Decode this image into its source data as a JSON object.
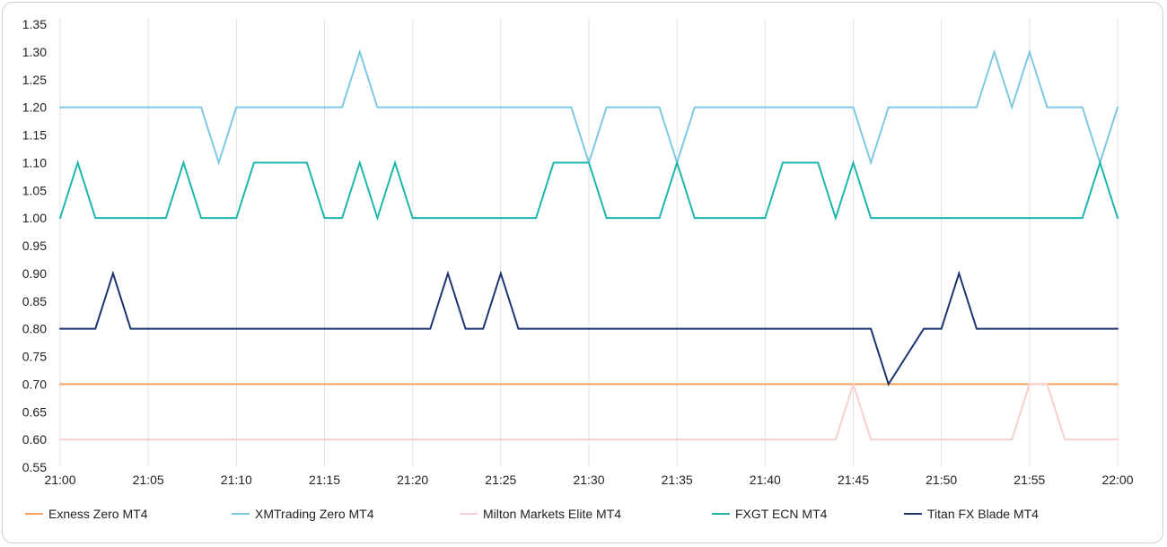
{
  "chart_data": {
    "type": "line",
    "x": [
      "21:00",
      "21:01",
      "21:02",
      "21:03",
      "21:04",
      "21:05",
      "21:06",
      "21:07",
      "21:08",
      "21:09",
      "21:10",
      "21:11",
      "21:12",
      "21:13",
      "21:14",
      "21:15",
      "21:16",
      "21:17",
      "21:18",
      "21:19",
      "21:20",
      "21:21",
      "21:22",
      "21:23",
      "21:24",
      "21:25",
      "21:26",
      "21:27",
      "21:28",
      "21:29",
      "21:30",
      "21:31",
      "21:32",
      "21:33",
      "21:34",
      "21:35",
      "21:36",
      "21:37",
      "21:38",
      "21:39",
      "21:40",
      "21:41",
      "21:42",
      "21:43",
      "21:44",
      "21:45",
      "21:46",
      "21:47",
      "21:48",
      "21:49",
      "21:50",
      "21:51",
      "21:52",
      "21:53",
      "21:54",
      "21:55",
      "21:56",
      "21:57",
      "21:58",
      "21:59",
      "22:00"
    ],
    "x_tick_labels": [
      "21:00",
      "21:05",
      "21:10",
      "21:15",
      "21:20",
      "21:25",
      "21:30",
      "21:35",
      "21:40",
      "21:45",
      "21:50",
      "21:55",
      "22:00"
    ],
    "y_tick_labels": [
      "1.35",
      "1.30",
      "1.25",
      "1.20",
      "1.15",
      "1.10",
      "1.05",
      "1.00",
      "0.95",
      "0.90",
      "0.85",
      "0.80",
      "0.75",
      "0.70",
      "0.65",
      "0.60",
      "0.55"
    ],
    "ylim": [
      0.55,
      1.35
    ],
    "grid": "vertical",
    "legend": "bottom",
    "series": [
      {
        "name": "Exness Zero MT4",
        "color": "#f5a35c",
        "values": [
          0.7,
          0.7,
          0.7,
          0.7,
          0.7,
          0.7,
          0.7,
          0.7,
          0.7,
          0.7,
          0.7,
          0.7,
          0.7,
          0.7,
          0.7,
          0.7,
          0.7,
          0.7,
          0.7,
          0.7,
          0.7,
          0.7,
          0.7,
          0.7,
          0.7,
          0.7,
          0.7,
          0.7,
          0.7,
          0.7,
          0.7,
          0.7,
          0.7,
          0.7,
          0.7,
          0.7,
          0.7,
          0.7,
          0.7,
          0.7,
          0.7,
          0.7,
          0.7,
          0.7,
          0.7,
          0.7,
          0.7,
          0.7,
          0.7,
          0.7,
          0.7,
          0.7,
          0.7,
          0.7,
          0.7,
          0.7,
          0.7,
          0.7,
          0.7,
          0.7,
          0.7
        ]
      },
      {
        "name": "XMTrading Zero MT4",
        "color": "#7ec8e3",
        "values": [
          1.2,
          1.2,
          1.2,
          1.2,
          1.2,
          1.2,
          1.2,
          1.2,
          1.2,
          1.1,
          1.2,
          1.2,
          1.2,
          1.2,
          1.2,
          1.2,
          1.2,
          1.3,
          1.2,
          1.2,
          1.2,
          1.2,
          1.2,
          1.2,
          1.2,
          1.2,
          1.2,
          1.2,
          1.2,
          1.2,
          1.1,
          1.2,
          1.2,
          1.2,
          1.2,
          1.1,
          1.2,
          1.2,
          1.2,
          1.2,
          1.2,
          1.2,
          1.2,
          1.2,
          1.2,
          1.2,
          1.1,
          1.2,
          1.2,
          1.2,
          1.2,
          1.2,
          1.2,
          1.3,
          1.2,
          1.3,
          1.2,
          1.2,
          1.2,
          1.1,
          1.2
        ]
      },
      {
        "name": "Milton Markets Elite MT4",
        "color": "#f9cfcf",
        "values": [
          0.6,
          0.6,
          0.6,
          0.6,
          0.6,
          0.6,
          0.6,
          0.6,
          0.6,
          0.6,
          0.6,
          0.6,
          0.6,
          0.6,
          0.6,
          0.6,
          0.6,
          0.6,
          0.6,
          0.6,
          0.6,
          0.6,
          0.6,
          0.6,
          0.6,
          0.6,
          0.6,
          0.6,
          0.6,
          0.6,
          0.6,
          0.6,
          0.6,
          0.6,
          0.6,
          0.6,
          0.6,
          0.6,
          0.6,
          0.6,
          0.6,
          0.6,
          0.6,
          0.6,
          0.6,
          0.7,
          0.6,
          0.6,
          0.6,
          0.6,
          0.6,
          0.6,
          0.6,
          0.6,
          0.6,
          0.7,
          0.7,
          0.6,
          0.6,
          0.6,
          0.6
        ]
      },
      {
        "name": "FXGT ECN MT4",
        "color": "#1cb5ac",
        "values": [
          1.0,
          1.1,
          1.0,
          1.0,
          1.0,
          1.0,
          1.0,
          1.1,
          1.0,
          1.0,
          1.0,
          1.1,
          1.1,
          1.1,
          1.1,
          1.0,
          1.0,
          1.1,
          1.0,
          1.1,
          1.0,
          1.0,
          1.0,
          1.0,
          1.0,
          1.0,
          1.0,
          1.0,
          1.1,
          1.1,
          1.1,
          1.0,
          1.0,
          1.0,
          1.0,
          1.1,
          1.0,
          1.0,
          1.0,
          1.0,
          1.0,
          1.1,
          1.1,
          1.1,
          1.0,
          1.1,
          1.0,
          1.0,
          1.0,
          1.0,
          1.0,
          1.0,
          1.0,
          1.0,
          1.0,
          1.0,
          1.0,
          1.0,
          1.0,
          1.1,
          1.0
        ]
      },
      {
        "name": "Titan FX Blade MT4",
        "color": "#1c3370",
        "values": [
          0.8,
          0.8,
          0.8,
          0.9,
          0.8,
          0.8,
          0.8,
          0.8,
          0.8,
          0.8,
          0.8,
          0.8,
          0.8,
          0.8,
          0.8,
          0.8,
          0.8,
          0.8,
          0.8,
          0.8,
          0.8,
          0.8,
          0.9,
          0.8,
          0.8,
          0.9,
          0.8,
          0.8,
          0.8,
          0.8,
          0.8,
          0.8,
          0.8,
          0.8,
          0.8,
          0.8,
          0.8,
          0.8,
          0.8,
          0.8,
          0.8,
          0.8,
          0.8,
          0.8,
          0.8,
          0.8,
          0.8,
          0.7,
          0.75,
          0.8,
          0.8,
          0.9,
          0.8,
          0.8,
          0.8,
          0.8,
          0.8,
          0.8,
          0.8,
          0.8,
          0.8
        ]
      }
    ]
  }
}
